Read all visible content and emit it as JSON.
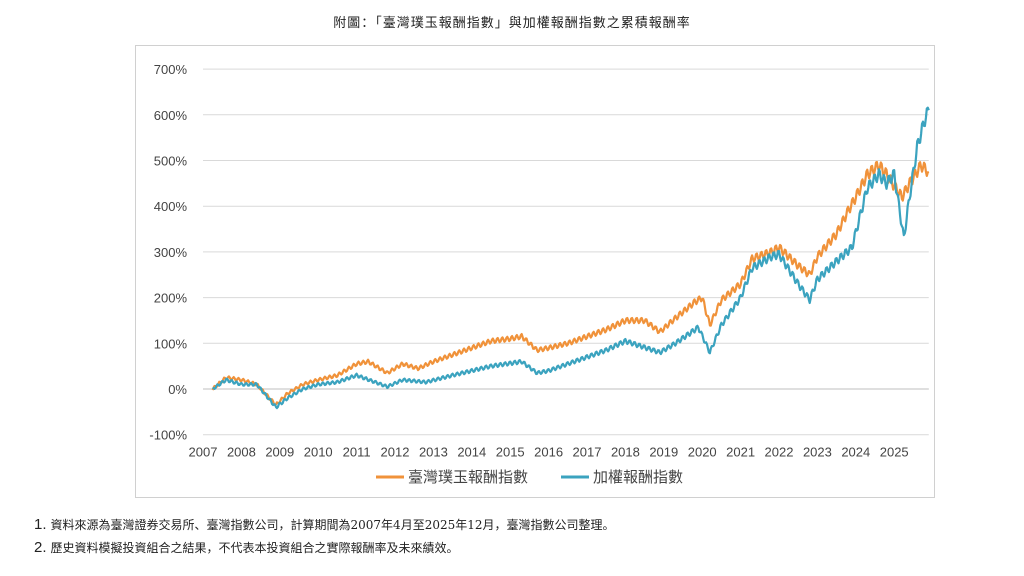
{
  "title": "附圖：「臺灣璞玉報酬指數」與加權報酬指數之累積報酬率",
  "chart_data": {
    "type": "line",
    "title": "",
    "xlabel": "",
    "ylabel": "",
    "xlim": [
      2007,
      2025.9
    ],
    "ylim": [
      -100,
      700
    ],
    "x_ticks": [
      "2007",
      "2008",
      "2009",
      "2010",
      "2011",
      "2012",
      "2013",
      "2014",
      "2015",
      "2016",
      "2017",
      "2018",
      "2019",
      "2020",
      "2021",
      "2022",
      "2023",
      "2024",
      "2025"
    ],
    "y_ticks": [
      "-100%",
      "0%",
      "100%",
      "200%",
      "300%",
      "400%",
      "500%",
      "600%",
      "700%"
    ],
    "y_tick_values": [
      -100,
      0,
      100,
      200,
      300,
      400,
      500,
      600,
      700
    ],
    "grid": "horizontal",
    "legend_position": "bottom",
    "series": [
      {
        "name": "臺灣璞玉報酬指數",
        "color": "#f0923a",
        "x": [
          2007.25,
          2007.6,
          2008.0,
          2008.4,
          2008.9,
          2009.2,
          2009.6,
          2010,
          2010.5,
          2011,
          2011.3,
          2011.8,
          2012.2,
          2012.6,
          2013,
          2013.5,
          2014,
          2014.5,
          2015,
          2015.3,
          2015.7,
          2016,
          2016.5,
          2017,
          2017.5,
          2018,
          2018.5,
          2018.9,
          2019.3,
          2019.8,
          2020.0,
          2020.2,
          2020.5,
          2021,
          2021.3,
          2021.8,
          2022,
          2022.5,
          2022.8,
          2023,
          2023.5,
          2023.8,
          2024,
          2024.3,
          2024.6,
          2024.8,
          2025.2,
          2025.4,
          2025.7,
          2025.9
        ],
        "y": [
          0,
          25,
          20,
          10,
          -35,
          -10,
          10,
          20,
          30,
          55,
          60,
          35,
          55,
          45,
          60,
          75,
          90,
          105,
          110,
          115,
          85,
          90,
          100,
          115,
          130,
          150,
          150,
          125,
          155,
          190,
          200,
          140,
          195,
          230,
          285,
          300,
          310,
          270,
          250,
          290,
          340,
          390,
          420,
          470,
          490,
          470,
          420,
          450,
          490,
          475
        ]
      },
      {
        "name": "加權報酬指數",
        "color": "#3ba3bf",
        "x": [
          2007.25,
          2007.6,
          2008,
          2008.4,
          2008.9,
          2009.2,
          2009.6,
          2010,
          2010.5,
          2011,
          2011.8,
          2012.2,
          2012.8,
          2013.5,
          2014,
          2014.5,
          2015.3,
          2015.7,
          2016,
          2016.5,
          2017,
          2017.5,
          2018,
          2018.9,
          2019.3,
          2019.9,
          2020.2,
          2020.5,
          2021,
          2021.3,
          2021.8,
          2022,
          2022.5,
          2022.8,
          2023,
          2023.5,
          2023.9,
          2024.3,
          2024.6,
          2024.8,
          2025.0,
          2025.25,
          2025.4,
          2025.6,
          2025.8,
          2025.9
        ],
        "y": [
          0,
          20,
          10,
          10,
          -40,
          -20,
          0,
          10,
          15,
          30,
          5,
          20,
          15,
          30,
          40,
          50,
          60,
          35,
          40,
          55,
          70,
          85,
          105,
          80,
          100,
          135,
          80,
          140,
          200,
          265,
          290,
          295,
          230,
          195,
          240,
          280,
          310,
          440,
          470,
          450,
          470,
          330,
          420,
          530,
          590,
          610
        ]
      }
    ]
  },
  "footnotes": [
    {
      "num": "1.",
      "text": "資料來源為臺灣證券交易所、臺灣指數公司，計算期間為2007年4月至2025年12月，臺灣指數公司整理。"
    },
    {
      "num": "2.",
      "text": "歷史資料模擬投資組合之結果，不代表本投資組合之實際報酬率及未來績效。"
    }
  ]
}
